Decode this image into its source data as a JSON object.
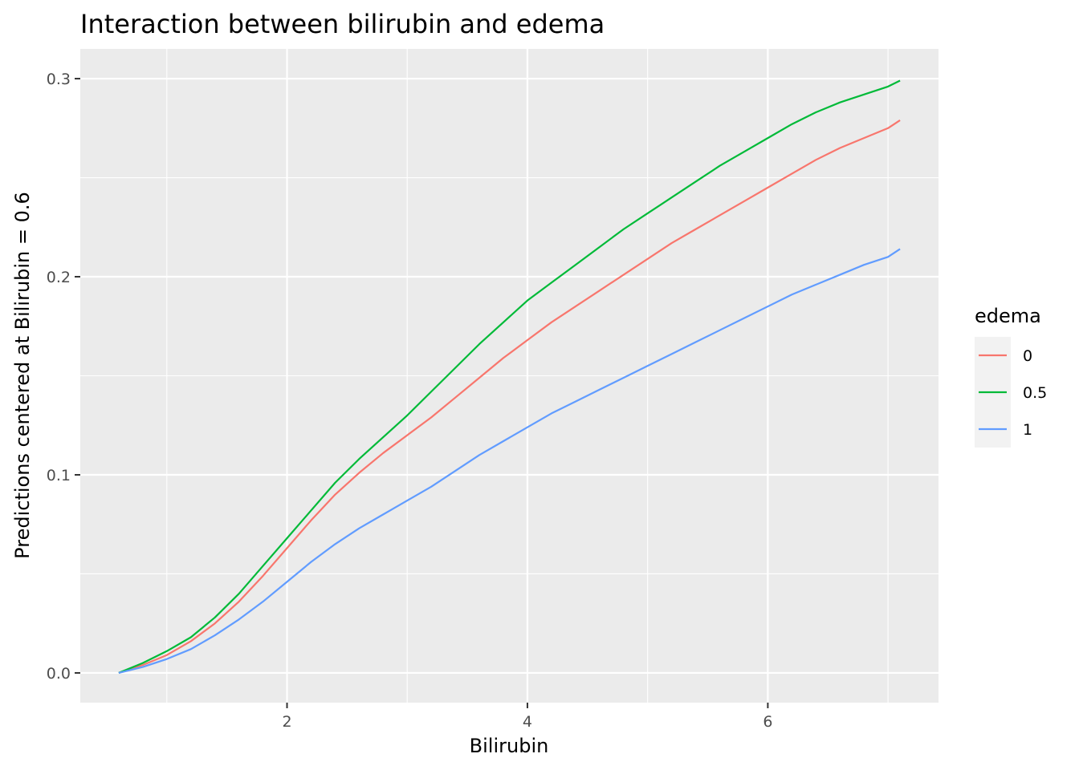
{
  "chart_data": {
    "type": "line",
    "title": "Interaction between bilirubin and edema",
    "xlabel": "Bilirubin",
    "ylabel": "Predictions centered at Bilirubin = 0.6",
    "xlim": [
      0.28,
      7.42
    ],
    "ylim": [
      -0.015,
      0.315
    ],
    "x_ticks": [
      {
        "value": 2,
        "label": "2"
      },
      {
        "value": 4,
        "label": "4"
      },
      {
        "value": 6,
        "label": "6"
      }
    ],
    "y_ticks": [
      {
        "value": 0.0,
        "label": "0.0"
      },
      {
        "value": 0.1,
        "label": "0.1"
      },
      {
        "value": 0.2,
        "label": "0.2"
      },
      {
        "value": 0.3,
        "label": "0.3"
      }
    ],
    "grid": true,
    "legend": {
      "title": "edema",
      "position": "right"
    },
    "x": [
      0.6,
      0.8,
      1.0,
      1.2,
      1.4,
      1.6,
      1.8,
      2.0,
      2.2,
      2.4,
      2.6,
      2.8,
      3.0,
      3.2,
      3.4,
      3.6,
      3.8,
      4.0,
      4.2,
      4.4,
      4.6,
      4.8,
      5.0,
      5.2,
      5.4,
      5.6,
      5.8,
      6.0,
      6.2,
      6.4,
      6.6,
      6.8,
      7.0,
      7.1
    ],
    "series": [
      {
        "name": "0",
        "color": "#F8766D",
        "values": [
          0.0,
          0.004,
          0.009,
          0.016,
          0.025,
          0.036,
          0.049,
          0.063,
          0.077,
          0.09,
          0.101,
          0.111,
          0.12,
          0.129,
          0.139,
          0.149,
          0.159,
          0.168,
          0.177,
          0.185,
          0.193,
          0.201,
          0.209,
          0.217,
          0.224,
          0.231,
          0.238,
          0.245,
          0.252,
          0.259,
          0.265,
          0.27,
          0.275,
          0.279
        ]
      },
      {
        "name": "0.5",
        "color": "#00BA38",
        "values": [
          0.0,
          0.005,
          0.011,
          0.018,
          0.028,
          0.04,
          0.054,
          0.068,
          0.082,
          0.096,
          0.108,
          0.119,
          0.13,
          0.142,
          0.154,
          0.166,
          0.177,
          0.188,
          0.197,
          0.206,
          0.215,
          0.224,
          0.232,
          0.24,
          0.248,
          0.256,
          0.263,
          0.27,
          0.277,
          0.283,
          0.288,
          0.292,
          0.296,
          0.299
        ]
      },
      {
        "name": "1",
        "color": "#619CFF",
        "values": [
          0.0,
          0.003,
          0.007,
          0.012,
          0.019,
          0.027,
          0.036,
          0.046,
          0.056,
          0.065,
          0.073,
          0.08,
          0.087,
          0.094,
          0.102,
          0.11,
          0.117,
          0.124,
          0.131,
          0.137,
          0.143,
          0.149,
          0.155,
          0.161,
          0.167,
          0.173,
          0.179,
          0.185,
          0.191,
          0.196,
          0.201,
          0.206,
          0.21,
          0.214
        ]
      }
    ]
  }
}
